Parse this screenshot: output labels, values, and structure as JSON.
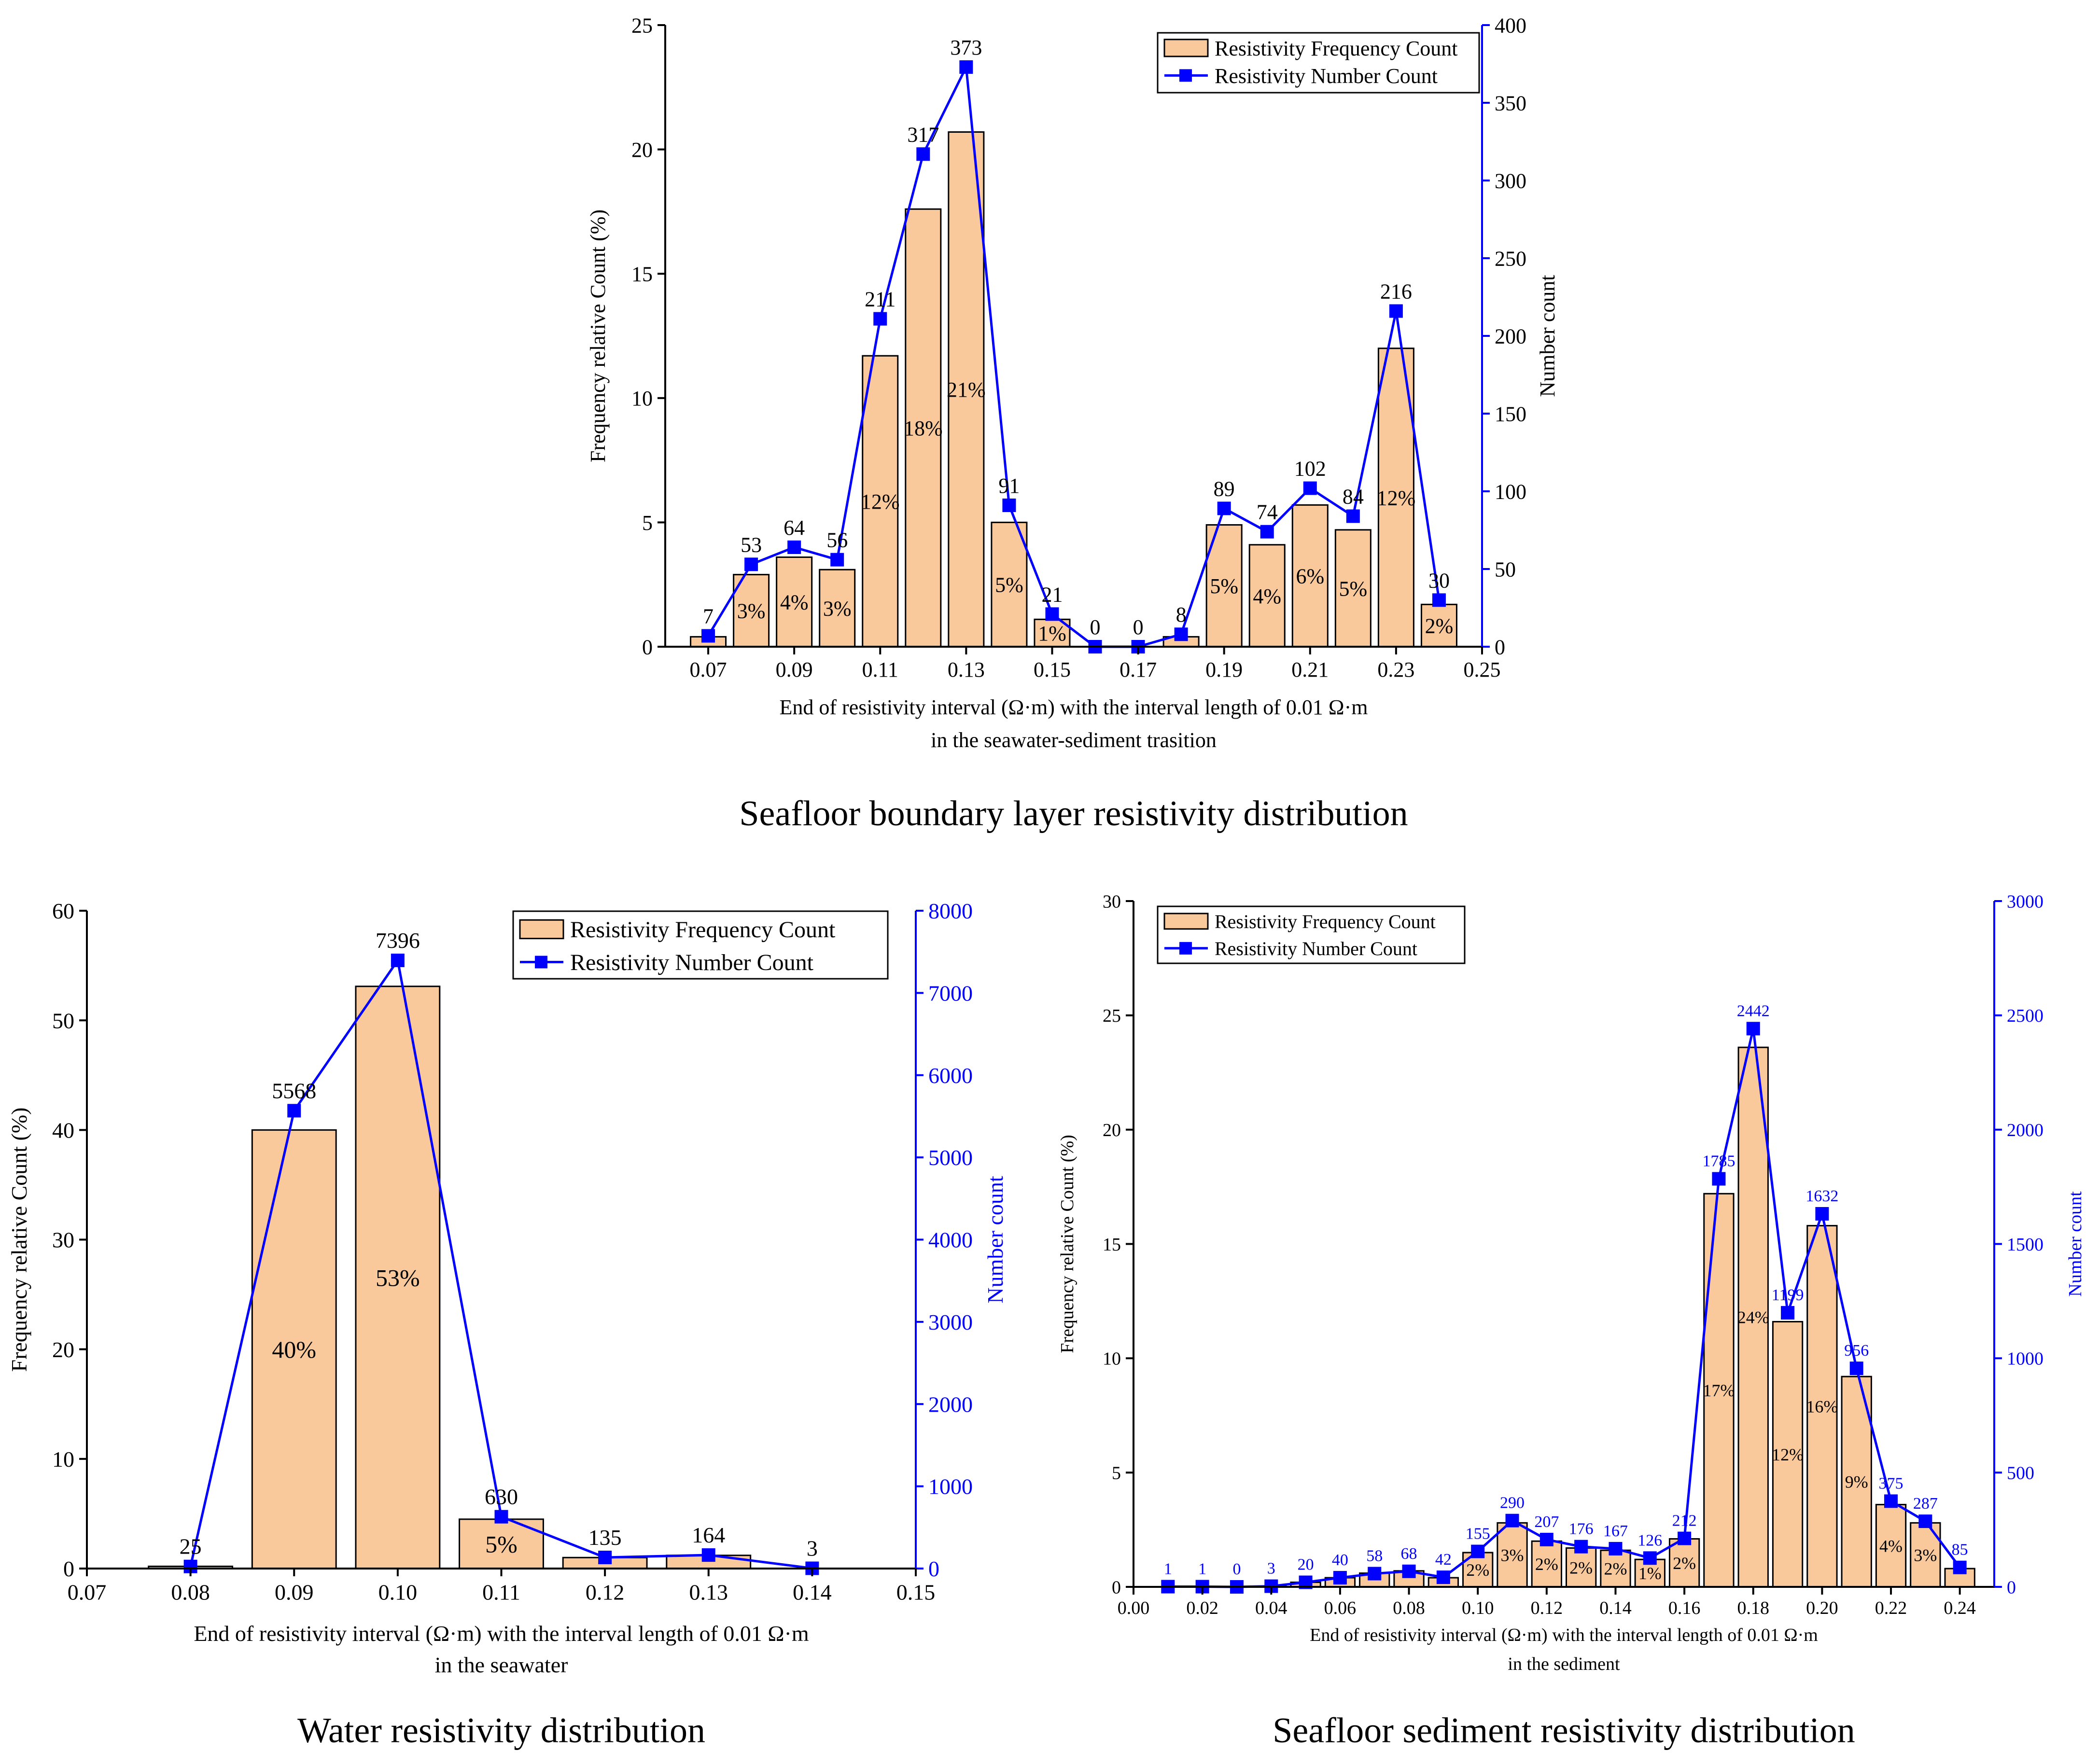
{
  "colors": {
    "bar_fill": "#F9C99B",
    "bar_stroke": "#000000",
    "line": "#0000FF",
    "axis_black": "#000000",
    "axis_blue": "#0000FF"
  },
  "chart_data": [
    {
      "type": "bar",
      "title": "Seafloor boundary layer resistivity distribution",
      "xlabel": "End of resistivity interval (Ω·m) with the interval length of 0.01 Ω·m",
      "xlabel2": "in the seawater-sediment trasition",
      "ylabel": "Frequency relative Count (%)",
      "y2label": "Number count",
      "xlim": [
        0.06,
        0.25
      ],
      "xticks": [
        0.07,
        0.09,
        0.11,
        0.13,
        0.15,
        0.17,
        0.19,
        0.21,
        0.23,
        0.25
      ],
      "xtick_labels": [
        "0.07",
        "0.09",
        "0.11",
        "0.13",
        "0.15",
        "0.17",
        "0.19",
        "0.21",
        "0.23",
        "0.25"
      ],
      "ylim": [
        0,
        25
      ],
      "yticks": [
        0,
        5,
        10,
        15,
        20,
        25
      ],
      "ytick_labels": [
        "0",
        "5",
        "10",
        "15",
        "20",
        "25"
      ],
      "y2lim": [
        0,
        400
      ],
      "y2ticks": [
        0,
        50,
        100,
        150,
        200,
        250,
        300,
        350,
        400
      ],
      "y2tick_labels": [
        "0",
        "50",
        "100",
        "150",
        "200",
        "250",
        "300",
        "350",
        "400"
      ],
      "x": [
        0.07,
        0.08,
        0.09,
        0.1,
        0.11,
        0.12,
        0.13,
        0.14,
        0.15,
        0.16,
        0.17,
        0.18,
        0.19,
        0.2,
        0.21,
        0.22,
        0.23,
        0.24
      ],
      "series": [
        {
          "name": "Resistivity Frequency Count",
          "kind": "bar",
          "values": [
            0.4,
            2.9,
            3.6,
            3.1,
            11.7,
            17.6,
            20.7,
            5.0,
            1.1,
            0,
            0,
            0.4,
            4.9,
            4.1,
            5.7,
            4.7,
            12.0,
            1.7
          ],
          "labels": [
            "",
            "3%",
            "4%",
            "3%",
            "12%",
            "18%",
            "21%",
            "5%",
            "1%",
            "",
            "",
            "",
            "5%",
            "4%",
            "6%",
            "5%",
            "12%",
            "2%"
          ]
        },
        {
          "name": "Resistivity Number Count",
          "kind": "line",
          "axis": "right",
          "values": [
            7,
            53,
            64,
            56,
            211,
            317,
            373,
            91,
            21,
            0,
            0,
            8,
            89,
            74,
            102,
            84,
            216,
            30
          ],
          "labels": [
            "7",
            "53",
            "64",
            "56",
            "211",
            "317",
            "373",
            "91",
            "21",
            "0",
            "0",
            "8",
            "89",
            "74",
            "102",
            "84",
            "216",
            "30"
          ]
        }
      ],
      "legend": "top-right"
    },
    {
      "type": "bar",
      "title": "Water resistivity distribution",
      "xlabel": "End of resistivity interval (Ω·m) with the interval length of 0.01 Ω·m",
      "xlabel2": "in the seawater",
      "ylabel": "Frequency relative Count (%)",
      "y2label": "Number count",
      "xlim": [
        0.07,
        0.15
      ],
      "xticks": [
        0.07,
        0.08,
        0.09,
        0.1,
        0.11,
        0.12,
        0.13,
        0.14,
        0.15
      ],
      "xtick_labels": [
        "0.07",
        "0.08",
        "0.09",
        "0.10",
        "0.11",
        "0.12",
        "0.13",
        "0.14",
        "0.15"
      ],
      "ylim": [
        0,
        60
      ],
      "yticks": [
        0,
        10,
        20,
        30,
        40,
        50,
        60
      ],
      "ytick_labels": [
        "0",
        "10",
        "20",
        "30",
        "40",
        "50",
        "60"
      ],
      "y2lim": [
        0,
        8000
      ],
      "y2ticks": [
        0,
        1000,
        2000,
        3000,
        4000,
        5000,
        6000,
        7000,
        8000
      ],
      "y2tick_labels": [
        "0",
        "1000",
        "2000",
        "3000",
        "4000",
        "5000",
        "6000",
        "7000",
        "8000"
      ],
      "x": [
        0.08,
        0.09,
        0.1,
        0.11,
        0.12,
        0.13,
        0.14
      ],
      "series": [
        {
          "name": "Resistivity Frequency Count",
          "kind": "bar",
          "values": [
            0.2,
            40.0,
            53.1,
            4.5,
            1.0,
            1.2,
            0.02
          ],
          "labels": [
            "",
            "40%",
            "53%",
            "5%",
            "",
            "",
            ""
          ]
        },
        {
          "name": "Resistivity Number Count",
          "kind": "line",
          "axis": "right",
          "values": [
            25,
            5568,
            7396,
            630,
            135,
            164,
            3
          ],
          "labels": [
            "25",
            "5568",
            "7396",
            "630",
            "135",
            "164",
            "3"
          ]
        }
      ],
      "legend": "top-right"
    },
    {
      "type": "bar",
      "title": "Seafloor sediment resistivity distribution",
      "xlabel": "End of resistivity interval (Ω·m) with the interval length of 0.01 Ω·m",
      "xlabel2": "in the sediment",
      "ylabel": "Frequency relative Count (%)",
      "y2label": "Number count",
      "xlim": [
        0.0,
        0.25
      ],
      "xticks": [
        0.0,
        0.02,
        0.04,
        0.06,
        0.08,
        0.1,
        0.12,
        0.14,
        0.16,
        0.18,
        0.2,
        0.22,
        0.24
      ],
      "xtick_labels": [
        "0.00",
        "0.02",
        "0.04",
        "0.06",
        "0.08",
        "0.10",
        "0.12",
        "0.14",
        "0.16",
        "0.18",
        "0.20",
        "0.22",
        "0.24"
      ],
      "ylim": [
        0,
        30
      ],
      "yticks": [
        0,
        5,
        10,
        15,
        20,
        25,
        30
      ],
      "ytick_labels": [
        "0",
        "5",
        "10",
        "15",
        "20",
        "25",
        "30"
      ],
      "y2lim": [
        0,
        3000
      ],
      "y2ticks": [
        0,
        500,
        1000,
        1500,
        2000,
        2500,
        3000
      ],
      "y2tick_labels": [
        "0",
        "500",
        "1000",
        "1500",
        "2000",
        "2500",
        "3000"
      ],
      "x": [
        0.01,
        0.02,
        0.03,
        0.04,
        0.05,
        0.06,
        0.07,
        0.08,
        0.09,
        0.1,
        0.11,
        0.12,
        0.13,
        0.14,
        0.15,
        0.16,
        0.17,
        0.18,
        0.19,
        0.2,
        0.21,
        0.22,
        0.23,
        0.24
      ],
      "series": [
        {
          "name": "Resistivity Frequency Count",
          "kind": "bar",
          "values": [
            0.01,
            0.01,
            0,
            0.03,
            0.2,
            0.4,
            0.6,
            0.7,
            0.4,
            1.5,
            2.8,
            2.0,
            1.7,
            1.6,
            1.2,
            2.1,
            17.2,
            23.6,
            11.6,
            15.8,
            9.2,
            3.6,
            2.8,
            0.8
          ],
          "labels": [
            "",
            "",
            "",
            "",
            "",
            "",
            "",
            "",
            "",
            "2%",
            "3%",
            "2%",
            "2%",
            "2%",
            "1%",
            "2%",
            "17%",
            "24%",
            "12%",
            "16%",
            "9%",
            "4%",
            "3%",
            ""
          ]
        },
        {
          "name": "Resistivity Number Count",
          "kind": "line",
          "axis": "right",
          "values": [
            1,
            1,
            0,
            3,
            20,
            40,
            58,
            68,
            42,
            155,
            290,
            207,
            176,
            167,
            126,
            212,
            1785,
            2442,
            1199,
            1632,
            956,
            375,
            287,
            85
          ],
          "labels": [
            "1",
            "1",
            "0",
            "3",
            "20",
            "40",
            "58",
            "68",
            "42",
            "155",
            "290",
            "207",
            "176",
            "167",
            "126",
            "212",
            "1785",
            "2442",
            "1199",
            "1632",
            "956",
            "375",
            "287",
            "85"
          ]
        }
      ],
      "legend": "top-left"
    }
  ]
}
